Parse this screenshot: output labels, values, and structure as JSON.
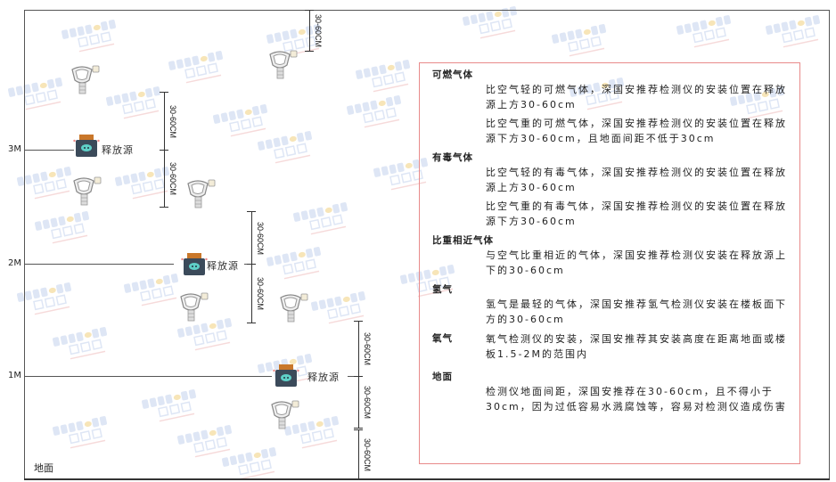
{
  "watermark": {
    "brand": "SINGOAN",
    "cn": "深国安",
    "code": "联系代码:081434"
  },
  "levels": [
    {
      "label": "3M"
    },
    {
      "label": "2M"
    },
    {
      "label": "1M"
    }
  ],
  "floor_label": "地面",
  "source_label": "释放源",
  "dimension_label": "30-60CM",
  "legend": {
    "sections": [
      {
        "title": "可燃气体",
        "paragraphs": [
          "比空气轻的可燃气体，深国安推荐检测仪的安装位置在释放源上方30-60cm",
          "比空气重的可燃气体，深国安推荐检测仪的安装位置在释放源下方30-60cm，且地面间距不低于30cm"
        ]
      },
      {
        "title": "有毒气体",
        "paragraphs": [
          "比空气轻的有毒气体，深国安推荐检测仪的安装位置在释放源上方30-60cm",
          "比空气重的有毒气体，深国安推荐检测仪的安装位置在释放源下方30-60cm"
        ]
      },
      {
        "title": "比重相近气体",
        "paragraphs": [
          "与空气比重相近的气体，深国安推荐检测仪安装在释放源上下的30-60cm"
        ]
      },
      {
        "title": "氢气",
        "paragraphs": [
          "氢气是最轻的气体，深国安推荐氢气检测仪安装在楼板面下方的30-60cm"
        ]
      },
      {
        "title": "氧气",
        "paragraphs": [
          "氧气检测仪的安装，深国安推荐其安装高度在距离地面或楼板1.5-2M的范围内"
        ]
      },
      {
        "title": "地面",
        "paragraphs": [
          "检测仪地面间距，深国安推荐在30-60cm，且不得小于30cm，因为过低容易水溅腐蚀等，容易对检测仪造成伤害"
        ]
      }
    ]
  },
  "colors": {
    "frame": "#555555",
    "legend_border": "#e88a8a",
    "watermark": "#c9d6ef",
    "source_body": "#3b4a5a",
    "source_cap": "#c9772a",
    "source_face": "#5fd0c8"
  }
}
